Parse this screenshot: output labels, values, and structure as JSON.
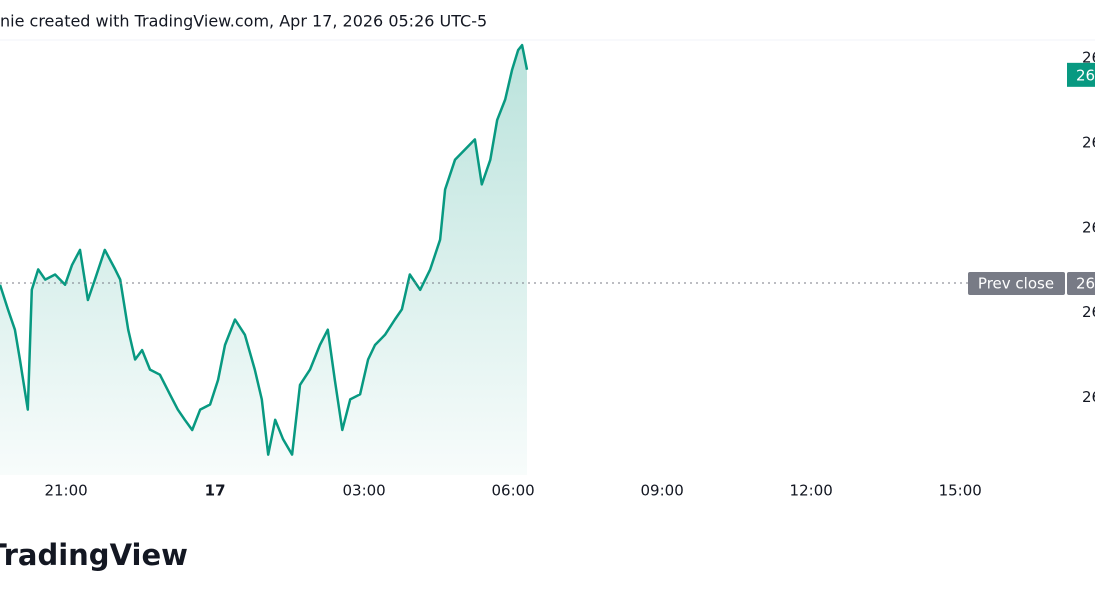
{
  "header": {
    "text": "nie created with TradingView.com, Apr 17, 2026 05:26 UTC-5"
  },
  "logo": "TradingView",
  "chart_data": {
    "type": "line",
    "x": [
      19.67,
      19.83,
      19.97,
      20.07,
      20.23,
      20.31,
      20.44,
      20.58,
      20.78,
      20.98,
      21.12,
      21.28,
      21.44,
      21.58,
      21.78,
      21.99,
      22.09,
      22.25,
      22.39,
      22.53,
      22.69,
      22.89,
      23.09,
      23.25,
      23.39,
      23.54,
      23.7,
      23.9,
      24.06,
      24.2,
      24.4,
      24.6,
      24.8,
      24.94,
      25.07,
      25.21,
      25.37,
      25.55,
      25.71,
      25.91,
      26.11,
      26.27,
      26.41,
      26.56,
      26.72,
      26.92,
      27.08,
      27.22,
      27.42,
      27.62,
      27.76,
      27.92,
      28.13,
      28.33,
      28.53,
      28.63,
      28.83,
      29.03,
      29.23,
      29.37,
      29.54,
      29.68,
      29.84,
      29.98,
      30.1,
      30.18,
      30.28
    ],
    "series": [
      {
        "color": "#089981",
        "values": [
          26333,
          26304,
          26280,
          26245,
          26186,
          26327,
          26351,
          26339,
          26345,
          26333,
          26356,
          26374,
          26315,
          26339,
          26374,
          26351,
          26339,
          26280,
          26245,
          26256,
          26233,
          26227,
          26204,
          26186,
          26174,
          26162,
          26186,
          26192,
          26221,
          26262,
          26292,
          26274,
          26233,
          26198,
          26133,
          26174,
          26151,
          26133,
          26215,
          26233,
          26262,
          26280,
          26221,
          26162,
          26198,
          26204,
          26245,
          26262,
          26274,
          26292,
          26304,
          26345,
          26327,
          26351,
          26386,
          26445,
          26480,
          26492,
          26504,
          26451,
          26480,
          26527,
          26551,
          26586,
          26609,
          26615,
          26586
        ]
      }
    ],
    "xlim": [
      19.67,
      41.11
    ],
    "xticks": [
      {
        "value": 21,
        "label": "21:00"
      },
      {
        "value": 24,
        "label": "17"
      },
      {
        "value": 27,
        "label": "03:00"
      },
      {
        "value": 30,
        "label": "06:00"
      },
      {
        "value": 33,
        "label": "09:00"
      },
      {
        "value": 36,
        "label": "12:00"
      },
      {
        "value": 39,
        "label": "15:00"
      }
    ],
    "ylim": [
      26109,
      26621
    ],
    "yticks": [
      {
        "value": 26600,
        "label": "26"
      },
      {
        "value": 26500,
        "label": "26"
      },
      {
        "value": 26400,
        "label": "26"
      },
      {
        "value": 26300,
        "label": "26"
      },
      {
        "value": 26200,
        "label": "26"
      }
    ],
    "last_price": {
      "value": 26580,
      "label": "26",
      "color": "#089981"
    },
    "prev_close": {
      "value": 26335,
      "label": "26",
      "text": "Prev close",
      "color": "#787b86"
    }
  }
}
